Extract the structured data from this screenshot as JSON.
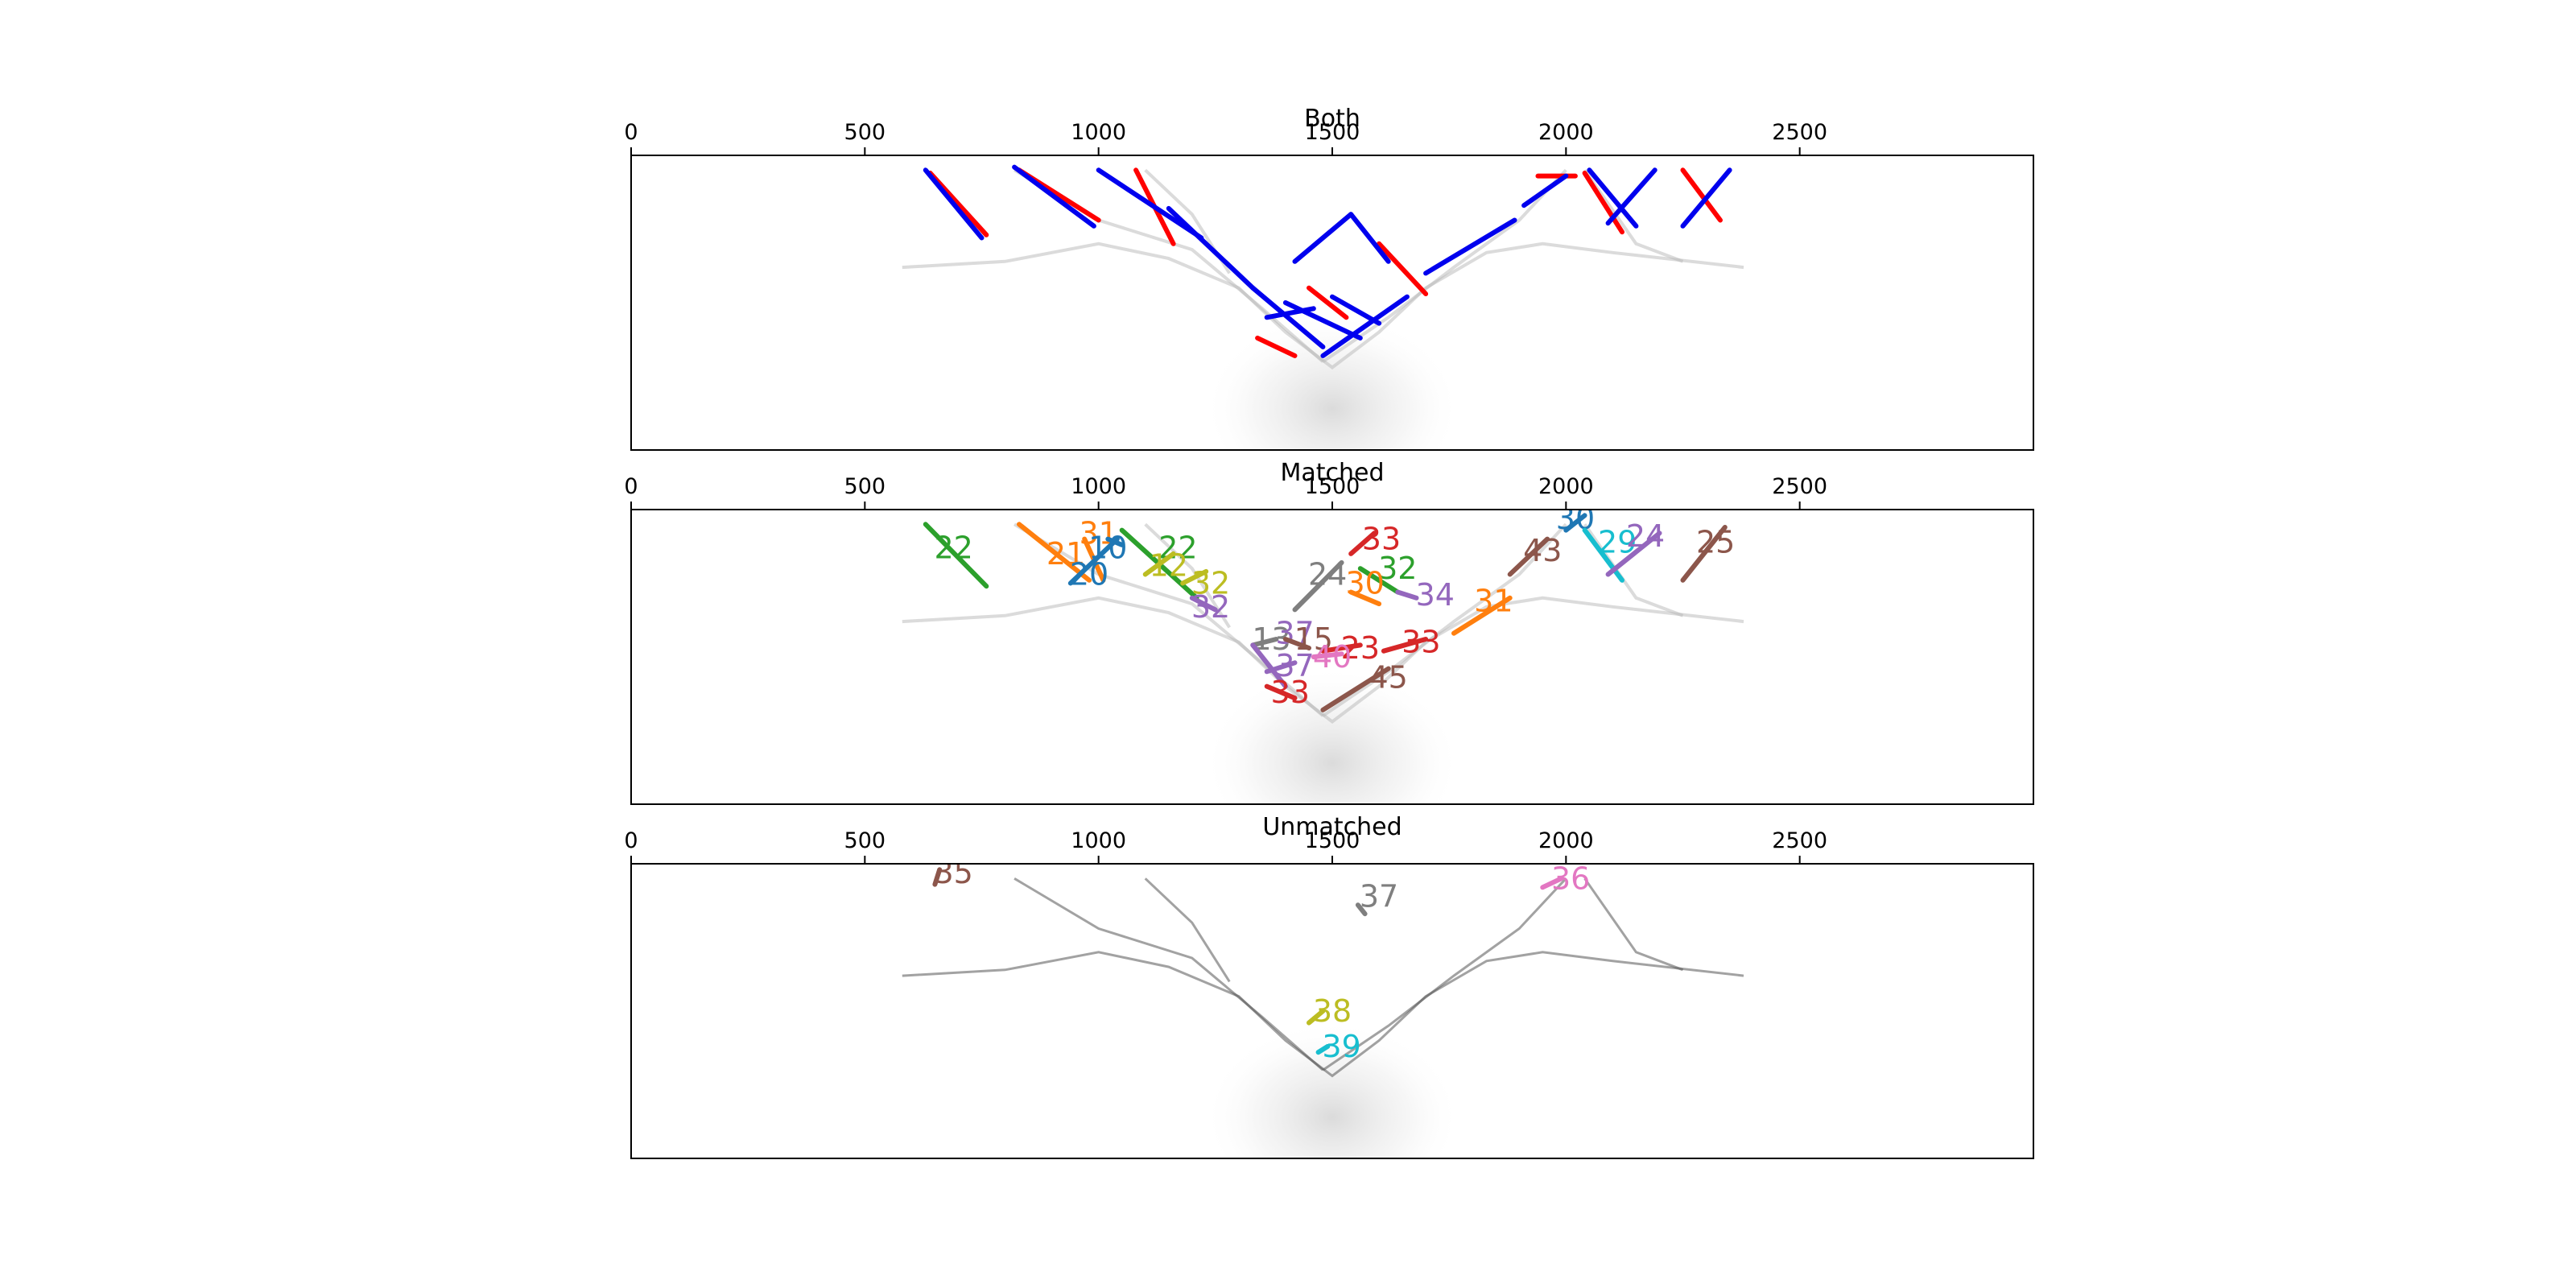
{
  "figure": {
    "panels": [
      {
        "id": "both",
        "title": "Both"
      },
      {
        "id": "matched",
        "title": "Matched"
      },
      {
        "id": "unmatched",
        "title": "Unmatched"
      }
    ]
  },
  "colors": {
    "frame": "#000000",
    "red": "#ff0000",
    "blue": "#0000ee",
    "tab10": [
      "#1f77b4",
      "#ff7f0e",
      "#2ca02c",
      "#d62728",
      "#9467bd",
      "#8c564b",
      "#e377c2",
      "#7f7f7f",
      "#bcbd22",
      "#17becf"
    ]
  },
  "chart_data": [
    {
      "type": "line",
      "title": "Both",
      "xlim": [
        0,
        3000
      ],
      "x_ticks": [
        0,
        500,
        1000,
        1500,
        2000,
        2500
      ],
      "ylim": [
        0,
        1
      ],
      "grid": false,
      "series": [
        {
          "color": "red",
          "segments": [
            [
              [
                640,
                0.06
              ],
              [
                760,
                0.27
              ]
            ],
            [
              [
                830,
                0.05
              ],
              [
                1000,
                0.22
              ]
            ],
            [
              [
                1080,
                0.05
              ],
              [
                1160,
                0.3
              ]
            ],
            [
              [
                1450,
                0.45
              ],
              [
                1530,
                0.55
              ]
            ],
            [
              [
                1600,
                0.3
              ],
              [
                1700,
                0.47
              ]
            ],
            [
              [
                1940,
                0.07
              ],
              [
                2020,
                0.07
              ]
            ],
            [
              [
                2040,
                0.06
              ],
              [
                2120,
                0.26
              ]
            ],
            [
              [
                2250,
                0.05
              ],
              [
                2330,
                0.22
              ]
            ],
            [
              [
                1340,
                0.62
              ],
              [
                1420,
                0.68
              ]
            ]
          ]
        },
        {
          "color": "blue",
          "segments": [
            [
              [
                630,
                0.05
              ],
              [
                750,
                0.28
              ]
            ],
            [
              [
                820,
                0.04
              ],
              [
                990,
                0.24
              ]
            ],
            [
              [
                1000,
                0.05
              ],
              [
                1220,
                0.28
              ]
            ],
            [
              [
                1150,
                0.18
              ],
              [
                1330,
                0.45
              ]
            ],
            [
              [
                1330,
                0.45
              ],
              [
                1480,
                0.65
              ]
            ],
            [
              [
                1480,
                0.68
              ],
              [
                1660,
                0.48
              ]
            ],
            [
              [
                1700,
                0.4
              ],
              [
                1890,
                0.22
              ]
            ],
            [
              [
                1910,
                0.17
              ],
              [
                2000,
                0.07
              ]
            ],
            [
              [
                2050,
                0.05
              ],
              [
                2150,
                0.24
              ]
            ],
            [
              [
                2090,
                0.23
              ],
              [
                2190,
                0.05
              ]
            ],
            [
              [
                2250,
                0.24
              ],
              [
                2350,
                0.05
              ]
            ],
            [
              [
                1420,
                0.36
              ],
              [
                1540,
                0.2
              ]
            ],
            [
              [
                1540,
                0.2
              ],
              [
                1620,
                0.36
              ]
            ],
            [
              [
                1360,
                0.55
              ],
              [
                1460,
                0.52
              ]
            ],
            [
              [
                1400,
                0.5
              ],
              [
                1560,
                0.62
              ]
            ],
            [
              [
                1500,
                0.48
              ],
              [
                1600,
                0.57
              ]
            ]
          ]
        }
      ],
      "background_traces": true
    },
    {
      "type": "line",
      "title": "Matched",
      "xlim": [
        0,
        3000
      ],
      "x_ticks": [
        0,
        500,
        1000,
        1500,
        2000,
        2500
      ],
      "ylim": [
        0,
        1
      ],
      "grid": false,
      "series": [
        {
          "label": "22",
          "color_index": 2,
          "points": [
            [
              630,
              0.05
            ],
            [
              760,
              0.26
            ]
          ],
          "label_at": [
            690,
            0.13
          ]
        },
        {
          "label": "21",
          "color_index": 1,
          "points": [
            [
              830,
              0.05
            ],
            [
              980,
              0.24
            ]
          ],
          "label_at": [
            930,
            0.15
          ]
        },
        {
          "label": "31",
          "color_index": 1,
          "points": [
            [
              970,
              0.1
            ],
            [
              1010,
              0.24
            ]
          ],
          "label_at": [
            1000,
            0.08
          ]
        },
        {
          "label": "20",
          "color_index": 0,
          "points": [
            [
              940,
              0.25
            ],
            [
              1040,
              0.1
            ]
          ],
          "label_at": [
            980,
            0.22
          ]
        },
        {
          "label": "10",
          "color_index": 0,
          "points": [
            [
              1020,
              0.1
            ],
            [
              1050,
              0.12
            ]
          ],
          "label_at": [
            1020,
            0.13
          ]
        },
        {
          "label": "22",
          "color_index": 2,
          "points": [
            [
              1050,
              0.07
            ],
            [
              1210,
              0.3
            ]
          ],
          "label_at": [
            1170,
            0.13
          ]
        },
        {
          "label": "12",
          "color_index": 8,
          "points": [
            [
              1100,
              0.22
            ],
            [
              1160,
              0.15
            ]
          ],
          "label_at": [
            1150,
            0.19
          ]
        },
        {
          "label": "32",
          "color_index": 8,
          "points": [
            [
              1180,
              0.25
            ],
            [
              1230,
              0.21
            ]
          ],
          "label_at": [
            1240,
            0.25
          ]
        },
        {
          "label": "32",
          "color_index": 4,
          "points": [
            [
              1200,
              0.3
            ],
            [
              1250,
              0.34
            ]
          ],
          "label_at": [
            1240,
            0.33
          ]
        },
        {
          "label": "33",
          "color_index": 3,
          "points": [
            [
              1540,
              0.15
            ],
            [
              1590,
              0.08
            ]
          ],
          "label_at": [
            1605,
            0.1
          ]
        },
        {
          "label": "24",
          "color_index": 7,
          "points": [
            [
              1420,
              0.34
            ],
            [
              1520,
              0.18
            ]
          ],
          "label_at": [
            1490,
            0.22
          ]
        },
        {
          "label": "32",
          "color_index": 2,
          "points": [
            [
              1560,
              0.2
            ],
            [
              1640,
              0.28
            ]
          ],
          "label_at": [
            1640,
            0.2
          ]
        },
        {
          "label": "30",
          "color_index": 1,
          "points": [
            [
              1540,
              0.28
            ],
            [
              1600,
              0.32
            ]
          ],
          "label_at": [
            1570,
            0.25
          ]
        },
        {
          "label": "34",
          "color_index": 4,
          "points": [
            [
              1640,
              0.28
            ],
            [
              1680,
              0.3
            ]
          ],
          "label_at": [
            1720,
            0.29
          ]
        },
        {
          "label": "31",
          "color_index": 1,
          "points": [
            [
              1760,
              0.42
            ],
            [
              1880,
              0.3
            ]
          ],
          "label_at": [
            1845,
            0.31
          ]
        },
        {
          "label": "43",
          "color_index": 5,
          "points": [
            [
              1880,
              0.22
            ],
            [
              1960,
              0.1
            ]
          ],
          "label_at": [
            1950,
            0.14
          ]
        },
        {
          "label": "30",
          "color_index": 0,
          "points": [
            [
              2000,
              0.07
            ],
            [
              2040,
              0.02
            ]
          ],
          "label_at": [
            2020,
            0.03
          ]
        },
        {
          "label": "29",
          "color_index": 9,
          "points": [
            [
              2040,
              0.07
            ],
            [
              2120,
              0.24
            ]
          ],
          "label_at": [
            2110,
            0.11
          ]
        },
        {
          "label": "24",
          "color_index": 4,
          "points": [
            [
              2090,
              0.22
            ],
            [
              2200,
              0.08
            ]
          ],
          "label_at": [
            2170,
            0.09
          ]
        },
        {
          "label": "25",
          "color_index": 5,
          "points": [
            [
              2250,
              0.24
            ],
            [
              2340,
              0.06
            ]
          ],
          "label_at": [
            2320,
            0.11
          ]
        },
        {
          "label": "13",
          "color_index": 7,
          "points": [
            [
              1330,
              0.46
            ],
            [
              1380,
              0.44
            ]
          ],
          "label_at": [
            1370,
            0.44
          ]
        },
        {
          "label": "37",
          "color_index": 4,
          "points": [
            [
              1330,
              0.46
            ],
            [
              1400,
              0.6
            ]
          ],
          "label_at": [
            1420,
            0.42
          ]
        },
        {
          "label": "15",
          "color_index": 5,
          "points": [
            [
              1400,
              0.44
            ],
            [
              1450,
              0.47
            ]
          ],
          "label_at": [
            1460,
            0.44
          ]
        },
        {
          "label": "23",
          "color_index": 3,
          "points": [
            [
              1480,
              0.48
            ],
            [
              1560,
              0.46
            ]
          ],
          "label_at": [
            1560,
            0.47
          ]
        },
        {
          "label": "33",
          "color_index": 3,
          "points": [
            [
              1610,
              0.48
            ],
            [
              1700,
              0.44
            ]
          ],
          "label_at": [
            1690,
            0.45
          ]
        },
        {
          "label": "40",
          "color_index": 6,
          "points": [
            [
              1460,
              0.5
            ],
            [
              1520,
              0.49
            ]
          ],
          "label_at": [
            1500,
            0.5
          ]
        },
        {
          "label": "37",
          "color_index": 4,
          "points": [
            [
              1360,
              0.55
            ],
            [
              1420,
              0.52
            ]
          ],
          "label_at": [
            1420,
            0.53
          ]
        },
        {
          "label": "33",
          "color_index": 3,
          "points": [
            [
              1360,
              0.6
            ],
            [
              1420,
              0.64
            ]
          ],
          "label_at": [
            1410,
            0.62
          ]
        },
        {
          "label": "45",
          "color_index": 5,
          "points": [
            [
              1480,
              0.68
            ],
            [
              1620,
              0.54
            ]
          ],
          "label_at": [
            1620,
            0.57
          ]
        }
      ],
      "background_traces": true
    },
    {
      "type": "line",
      "title": "Unmatched",
      "xlim": [
        0,
        3000
      ],
      "x_ticks": [
        0,
        500,
        1000,
        1500,
        2000,
        2500
      ],
      "ylim": [
        0,
        1
      ],
      "grid": false,
      "series": [
        {
          "label": "35",
          "color_index": 5,
          "points": [
            [
              650,
              0.07
            ],
            [
              660,
              0.02
            ]
          ],
          "label_at": [
            690,
            0.03
          ]
        },
        {
          "label": "37",
          "color_index": 7,
          "points": [
            [
              1555,
              0.14
            ],
            [
              1570,
              0.17
            ]
          ],
          "label_at": [
            1600,
            0.11
          ]
        },
        {
          "label": "36",
          "color_index": 6,
          "points": [
            [
              1950,
              0.08
            ],
            [
              1990,
              0.05
            ]
          ],
          "label_at": [
            2010,
            0.05
          ]
        },
        {
          "label": "38",
          "color_index": 8,
          "points": [
            [
              1450,
              0.54
            ],
            [
              1480,
              0.5
            ]
          ],
          "label_at": [
            1500,
            0.5
          ]
        },
        {
          "label": "39",
          "color_index": 9,
          "points": [
            [
              1470,
              0.64
            ],
            [
              1490,
              0.62
            ]
          ],
          "label_at": [
            1520,
            0.62
          ]
        }
      ],
      "background_traces": true
    }
  ]
}
